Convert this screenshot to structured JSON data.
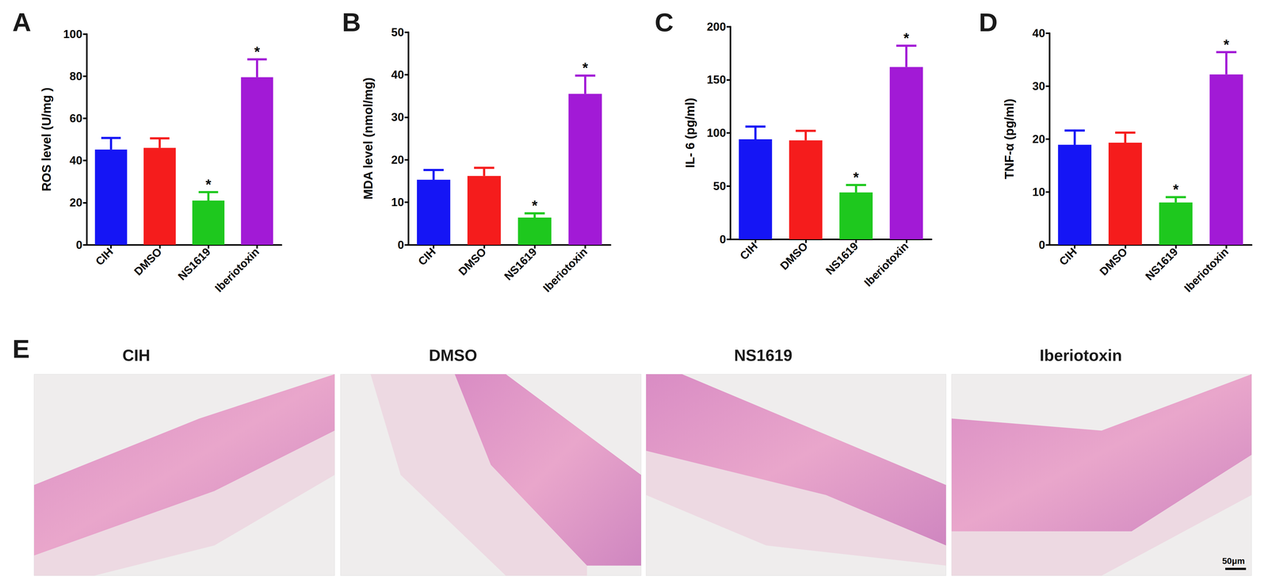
{
  "chart_data": [
    {
      "panel": "A",
      "type": "bar",
      "ylabel": "ROS level (U/mg )",
      "categories": [
        "CIH",
        "DMSO",
        "NS1619",
        "Iberiotoxin"
      ],
      "values": [
        45.2,
        46,
        21,
        79.5
      ],
      "error": [
        5.5,
        4.5,
        4,
        8.5
      ],
      "colors": [
        "#1515f5",
        "#f51c1c",
        "#1ec81e",
        "#a21ad6"
      ],
      "annotations": [
        null,
        null,
        "*",
        "*"
      ],
      "ylim": [
        0,
        100
      ],
      "yticks": [
        0,
        20,
        40,
        60,
        80,
        100
      ],
      "grid": false
    },
    {
      "panel": "B",
      "type": "bar",
      "ylabel": "MDA level (nmol/mg)",
      "categories": [
        "CIH",
        "DMSO",
        "NS1619",
        "Iberiotoxin"
      ],
      "values": [
        15.3,
        16.2,
        6.4,
        35.5
      ],
      "error": [
        2.3,
        1.9,
        1,
        4.3
      ],
      "colors": [
        "#1515f5",
        "#f51c1c",
        "#1ec81e",
        "#a21ad6"
      ],
      "annotations": [
        null,
        null,
        "*",
        "*"
      ],
      "ylim": [
        0,
        50
      ],
      "yticks": [
        0,
        10,
        20,
        30,
        40,
        50
      ],
      "grid": false
    },
    {
      "panel": "C",
      "type": "bar",
      "ylabel": "IL- 6 (pg/ml)",
      "categories": [
        "CIH",
        "DMSO",
        "NS1619",
        "Iberiotoxin"
      ],
      "values": [
        94,
        93,
        44,
        162
      ],
      "error": [
        12,
        9,
        7,
        20
      ],
      "colors": [
        "#1515f5",
        "#f51c1c",
        "#1ec81e",
        "#a21ad6"
      ],
      "annotations": [
        null,
        null,
        "*",
        "*"
      ],
      "ylim": [
        0,
        200
      ],
      "yticks": [
        0,
        50,
        100,
        150,
        200
      ],
      "grid": false
    },
    {
      "panel": "D",
      "type": "bar",
      "ylabel": "TNF-α (pg/ml)",
      "categories": [
        "CIH",
        "DMSO",
        "NS1619",
        "Iberiotoxin"
      ],
      "values": [
        18.9,
        19.3,
        8,
        32.2
      ],
      "error": [
        2.7,
        1.9,
        1,
        4.2
      ],
      "colors": [
        "#1515f5",
        "#f51c1c",
        "#1ec81e",
        "#a21ad6"
      ],
      "annotations": [
        null,
        null,
        "*",
        "*"
      ],
      "ylim": [
        0,
        40
      ],
      "yticks": [
        0,
        10,
        20,
        30,
        40
      ],
      "grid": false
    }
  ],
  "histology": {
    "panel": "E",
    "images": [
      {
        "title": "CIH"
      },
      {
        "title": "DMSO"
      },
      {
        "title": "NS1619"
      },
      {
        "title": "Iberiotoxin"
      }
    ],
    "scale_bar": "50μm"
  }
}
